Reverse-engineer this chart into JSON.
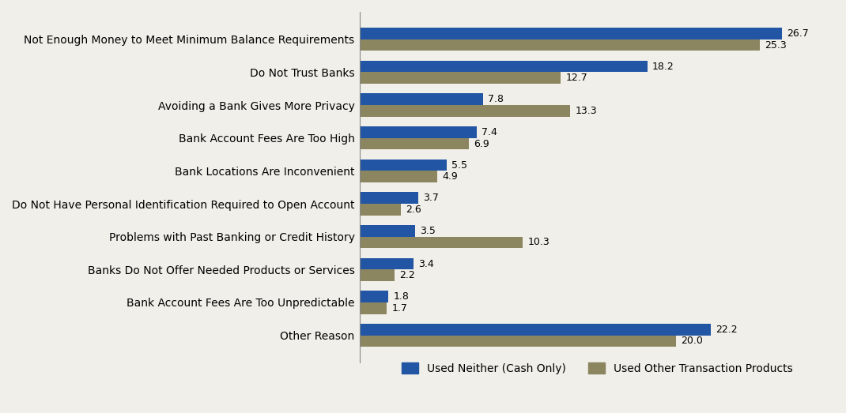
{
  "categories": [
    "Not Enough Money to Meet Minimum Balance Requirements",
    "Do Not Trust Banks",
    "Avoiding a Bank Gives More Privacy",
    "Bank Account Fees Are Too High",
    "Bank Locations Are Inconvenient",
    "Do Not Have Personal Identification Required to Open Account",
    "Problems with Past Banking or Credit History",
    "Banks Do Not Offer Needed Products or Services",
    "Bank Account Fees Are Too Unpredictable",
    "Other Reason"
  ],
  "cash_only": [
    26.7,
    18.2,
    7.8,
    7.4,
    5.5,
    3.7,
    3.5,
    3.4,
    1.8,
    22.2
  ],
  "other_transaction": [
    25.3,
    12.7,
    13.3,
    6.9,
    4.9,
    2.6,
    10.3,
    2.2,
    1.7,
    20.0
  ],
  "color_cash": "#2255A4",
  "color_other": "#8B8560",
  "background_color": "#F0EFE9",
  "label_cash": "Used Neither (Cash Only)",
  "label_other": "Used Other Transaction Products",
  "bar_height": 0.35,
  "xlim": [
    0,
    30
  ],
  "fontsize_labels": 10,
  "fontsize_values": 9
}
